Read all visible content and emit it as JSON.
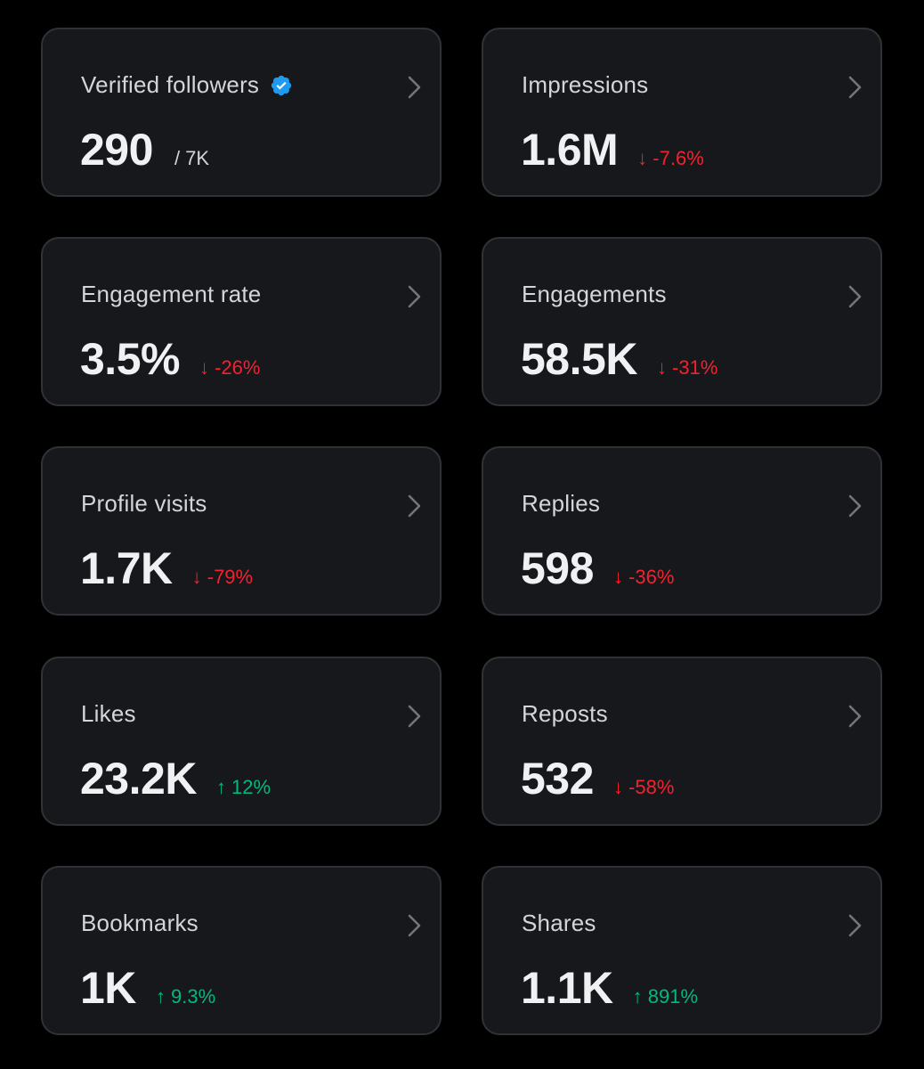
{
  "colors": {
    "background": "#000000",
    "card": "#16181c",
    "card_border": "#2f3336",
    "verified_blue": "#1d9bf0",
    "negative": "#f4212e",
    "positive": "#00ba7c"
  },
  "cards": [
    {
      "label": "Verified followers",
      "value": "290",
      "suffix": "/ 7K",
      "icon": "verified-badge-icon"
    },
    {
      "label": "Impressions",
      "value": "1.6M",
      "change": "↓ -7.6%",
      "trend": "down"
    },
    {
      "label": "Engagement rate",
      "value": "3.5%",
      "change": "↓ -26%",
      "trend": "down"
    },
    {
      "label": "Engagements",
      "value": "58.5K",
      "change": "↓ -31%",
      "trend": "down"
    },
    {
      "label": "Profile visits",
      "value": "1.7K",
      "change": "↓ -79%",
      "trend": "down"
    },
    {
      "label": "Replies",
      "value": "598",
      "change": "↓ -36%",
      "trend": "down"
    },
    {
      "label": "Likes",
      "value": "23.2K",
      "change": "↑ 12%",
      "trend": "up"
    },
    {
      "label": "Reposts",
      "value": "532",
      "change": "↓ -58%",
      "trend": "down"
    },
    {
      "label": "Bookmarks",
      "value": "1K",
      "change": "↑ 9.3%",
      "trend": "up"
    },
    {
      "label": "Shares",
      "value": "1.1K",
      "change": "↑ 891%",
      "trend": "up"
    }
  ]
}
